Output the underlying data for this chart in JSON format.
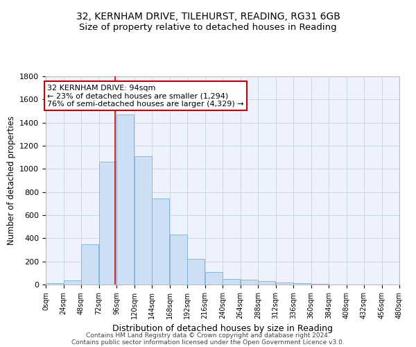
{
  "title1": "32, KERNHAM DRIVE, TILEHURST, READING, RG31 6GB",
  "title2": "Size of property relative to detached houses in Reading",
  "xlabel": "Distribution of detached houses by size in Reading",
  "ylabel": "Number of detached properties",
  "bar_values": [
    10,
    35,
    350,
    1060,
    1470,
    1110,
    745,
    430,
    220,
    110,
    50,
    45,
    30,
    20,
    10,
    5,
    3,
    2,
    1,
    0
  ],
  "bin_edges": [
    0,
    24,
    48,
    72,
    96,
    120,
    144,
    168,
    192,
    216,
    240,
    264,
    288,
    312,
    336,
    360,
    384,
    408,
    432,
    456,
    480
  ],
  "bar_color": "#ccdff5",
  "bar_edge_color": "#7aafd4",
  "red_line_x": 94,
  "annotation_line1": "32 KERNHAM DRIVE: 94sqm",
  "annotation_line2": "← 23% of detached houses are smaller (1,294)",
  "annotation_line3": "76% of semi-detached houses are larger (4,329) →",
  "annotation_box_color": "#ffffff",
  "annotation_box_edge_color": "#cc0000",
  "ylim": [
    0,
    1800
  ],
  "footer1": "Contains HM Land Registry data © Crown copyright and database right 2024.",
  "footer2": "Contains public sector information licensed under the Open Government Licence v3.0.",
  "bg_color": "#edf2fc",
  "grid_color": "#ccd5e8",
  "title1_fontsize": 10,
  "title2_fontsize": 9.5,
  "tick_label_fontsize": 7,
  "ylabel_fontsize": 8.5,
  "xlabel_fontsize": 9,
  "footer_fontsize": 6.5,
  "annotation_fontsize": 8
}
